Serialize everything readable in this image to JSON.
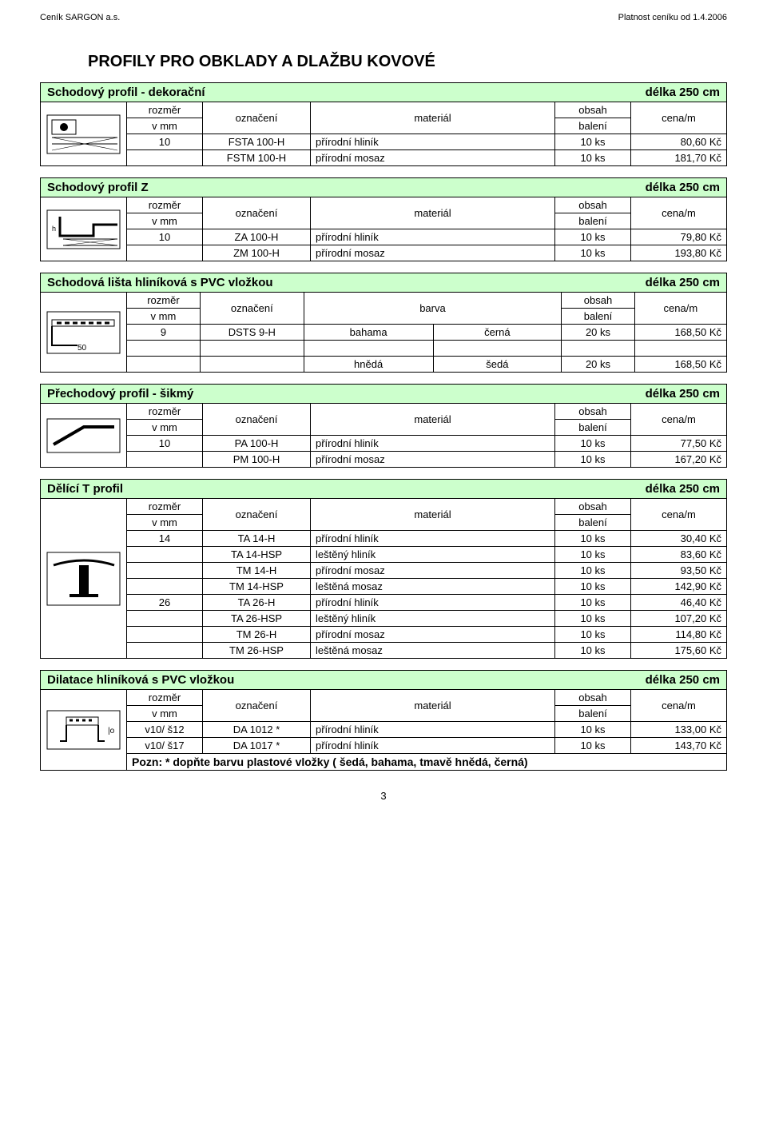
{
  "header": {
    "left": "Ceník SARGON a.s.",
    "right": "Platnost ceníku od 1.4.2006"
  },
  "title": "PROFILY PRO OBKLADY A DLAŽBU KOVOVÉ",
  "labels": {
    "rozmer": "rozměr",
    "rozmer_sub": "v mm",
    "oznaceni": "označení",
    "material": "materiál",
    "barva": "barva",
    "obsah": "obsah",
    "obsah_sub": "balení",
    "cena": "cena/m"
  },
  "sections": [
    {
      "name": "Schodový profil - dekorační",
      "length": "délka 250 cm",
      "header_type": "material",
      "rows": [
        {
          "s": "10",
          "o": "FSTA 100-H",
          "m": "přírodní hliník",
          "b": "10 ks",
          "c": "80,60 Kč"
        },
        {
          "s": "",
          "o": "FSTM 100-H",
          "m": "přírodní mosaz",
          "b": "10 ks",
          "c": "181,70 Kč"
        }
      ]
    },
    {
      "name": "Schodový profil Z",
      "length": "délka 250 cm",
      "header_type": "material",
      "rows": [
        {
          "s": "10",
          "o": "ZA 100-H",
          "m": "přírodní hliník",
          "b": "10 ks",
          "c": "79,80 Kč"
        },
        {
          "s": "",
          "o": "ZM 100-H",
          "m": "přírodní mosaz",
          "b": "10 ks",
          "c": "193,80 Kč"
        }
      ]
    },
    {
      "name": "Schodová lišta hliníková s PVC vložkou",
      "length": "délka 250 cm",
      "header_type": "barva",
      "rows": [
        {
          "s": "9",
          "o": "DSTS 9-H",
          "ma": "bahama",
          "mb": "černá",
          "b": "20 ks",
          "c": "168,50 Kč"
        },
        {
          "blank": true
        },
        {
          "s": "",
          "o": "",
          "ma": "hnědá",
          "mb": "šedá",
          "b": "20 ks",
          "c": "168,50 Kč"
        }
      ]
    },
    {
      "name": "Přechodový profil - šikmý",
      "length": "délka 250 cm",
      "header_type": "material",
      "rows": [
        {
          "s": "10",
          "o": "PA 100-H",
          "m": "přírodní hliník",
          "b": "10 ks",
          "c": "77,50 Kč"
        },
        {
          "s": "",
          "o": "PM 100-H",
          "m": "přírodní mosaz",
          "b": "10 ks",
          "c": "167,20 Kč"
        }
      ]
    },
    {
      "name": "Dělící T profil",
      "length": "délka 250 cm",
      "header_type": "material",
      "rows": [
        {
          "s": "14",
          "o": "TA 14-H",
          "m": "přírodní hliník",
          "b": "10 ks",
          "c": "30,40 Kč"
        },
        {
          "s": "",
          "o": "TA 14-HSP",
          "m": "leštěný hliník",
          "b": "10 ks",
          "c": "83,60 Kč"
        },
        {
          "s": "",
          "o": "TM 14-H",
          "m": "přírodní mosaz",
          "b": "10 ks",
          "c": "93,50 Kč"
        },
        {
          "s": "",
          "o": "TM 14-HSP",
          "m": "leštěná mosaz",
          "b": "10 ks",
          "c": "142,90 Kč"
        },
        {
          "s": "26",
          "o": "TA 26-H",
          "m": "přírodní hliník",
          "b": "10 ks",
          "c": "46,40 Kč"
        },
        {
          "s": "",
          "o": "TA 26-HSP",
          "m": "leštěný hliník",
          "b": "10 ks",
          "c": "107,20 Kč"
        },
        {
          "s": "",
          "o": "TM 26-H",
          "m": "přírodní mosaz",
          "b": "10 ks",
          "c": "114,80 Kč"
        },
        {
          "s": "",
          "o": "TM 26-HSP",
          "m": "leštěná mosaz",
          "b": "10 ks",
          "c": "175,60 Kč"
        }
      ]
    },
    {
      "name": "Dilatace hliníková s PVC vložkou",
      "length": "délka 250 cm",
      "header_type": "material",
      "rows": [
        {
          "s": "v10/ š12",
          "o": "DA 1012 *",
          "m": "přírodní hliník",
          "b": "10 ks",
          "c": "133,00 Kč"
        },
        {
          "s": "v10/ š17",
          "o": "DA 1017 *",
          "m": "přírodní hliník",
          "b": "10 ks",
          "c": "143,70 Kč"
        }
      ],
      "note": "Pozn: * dopňte barvu plastové vložky ( šedá, bahama, tmavě hnědá, černá)"
    }
  ],
  "page_number": "3",
  "colors": {
    "section_bg": "#ccffcc",
    "border": "#000000"
  }
}
